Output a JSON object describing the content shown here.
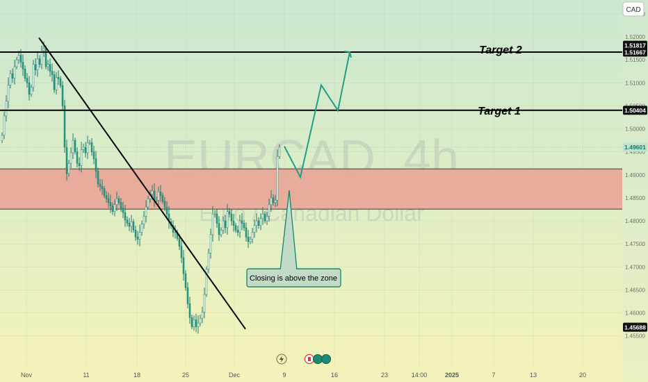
{
  "chart_data": {
    "type": "candlestick",
    "watermark": {
      "symbol": "EURCAD, 4h",
      "name": "Euro / Canadian Dollar"
    },
    "currency": "CAD",
    "y_axis": {
      "min": 1.448,
      "max": 1.528,
      "ticks": [
        "1.45500",
        "1.46000",
        "1.46500",
        "1.47000",
        "1.47500",
        "1.48000",
        "1.48500",
        "1.49000",
        "1.49500",
        "1.50000",
        "1.50500",
        "1.51000",
        "1.51500",
        "1.52000",
        "1.52500"
      ]
    },
    "x_axis": {
      "ticks": [
        {
          "label": "Nov",
          "bold": false
        },
        {
          "label": "11",
          "bold": false
        },
        {
          "label": "18",
          "bold": false
        },
        {
          "label": "25",
          "bold": false
        },
        {
          "label": "Dec",
          "bold": false
        },
        {
          "label": "9",
          "bold": false
        },
        {
          "label": "16",
          "bold": false
        },
        {
          "label": "23",
          "bold": false
        },
        {
          "label": "14:00",
          "bold": false
        },
        {
          "label": "2025",
          "bold": true
        },
        {
          "label": "7",
          "bold": false
        },
        {
          "label": "13",
          "bold": false
        },
        {
          "label": "20",
          "bold": false
        }
      ]
    },
    "price_labels": [
      {
        "value": 1.51817,
        "text": "1.51817",
        "style": "dark"
      },
      {
        "value": 1.51667,
        "text": "1.51667",
        "style": "dark"
      },
      {
        "value": 1.50404,
        "text": "1.50404",
        "style": "dark"
      },
      {
        "value": 1.49601,
        "text": "1.49601",
        "style": "green"
      },
      {
        "value": 1.45688,
        "text": "1.45688",
        "style": "dark"
      }
    ],
    "levels": [
      {
        "value": 1.51667,
        "label": "Target 2"
      },
      {
        "value": 1.50404,
        "label": "Target 1"
      }
    ],
    "zone": {
      "low": 1.48255,
      "high": 1.4913
    },
    "last_price": 1.49601,
    "annotation": "Closing is above the zone",
    "trendline": [
      {
        "x": "Nov 4",
        "y": 1.5198
      },
      {
        "x": "Dec 1",
        "y": 1.4565
      }
    ],
    "projection": [
      {
        "x": "Dec 9",
        "y": 1.4962
      },
      {
        "x": "Dec 12",
        "y": 1.4895
      },
      {
        "x": "Dec 16",
        "y": 1.5095
      },
      {
        "x": "Dec 18",
        "y": 1.504
      },
      {
        "x": "Dec 21",
        "y": 1.5167
      }
    ],
    "closes": [
      1.4986,
      1.5028,
      1.506,
      1.5095,
      1.512,
      1.511,
      1.5135,
      1.515,
      1.516,
      1.5145,
      1.513,
      1.511,
      1.51,
      1.5075,
      1.509,
      1.514,
      1.5128,
      1.5152,
      1.514,
      1.517,
      1.5175,
      1.5135,
      1.514,
      1.5125,
      1.5118,
      1.5085,
      1.5112,
      1.5109,
      1.5094,
      1.505,
      1.496,
      1.4903,
      1.4925,
      1.4948,
      1.4975,
      1.495,
      1.4925,
      1.492,
      1.4955,
      1.496,
      1.4948,
      1.497,
      1.497,
      1.495,
      1.4935,
      1.4908,
      1.488,
      1.4875,
      1.487,
      1.4855,
      1.4848,
      1.484,
      1.4832,
      1.482,
      1.4835,
      1.4848,
      1.484,
      1.4828,
      1.4818,
      1.4802,
      1.4795,
      1.4788,
      1.4798,
      1.478,
      1.4765,
      1.476,
      1.4775,
      1.4793,
      1.481,
      1.483,
      1.4848,
      1.4858,
      1.4865,
      1.4845,
      1.4845,
      1.4863,
      1.4855,
      1.4842,
      1.483,
      1.4815,
      1.4798,
      1.479,
      1.4775,
      1.4775,
      1.4762,
      1.4745,
      1.472,
      1.4685,
      1.4655,
      1.462,
      1.459,
      1.457,
      1.4585,
      1.457,
      1.4578,
      1.4588,
      1.4602,
      1.464,
      1.4695,
      1.473,
      1.477,
      1.4815,
      1.4815,
      1.4795,
      1.477,
      1.478,
      1.48,
      1.4785,
      1.482,
      1.4815,
      1.48,
      1.479,
      1.478,
      1.4775,
      1.48,
      1.4795,
      1.4785,
      1.4765,
      1.4755,
      1.476,
      1.4775,
      1.479,
      1.48,
      1.479,
      1.4805,
      1.4815,
      1.48,
      1.481,
      1.4835,
      1.485,
      1.484,
      1.4845,
      1.494,
      1.496
    ]
  },
  "header": {
    "currency_label": "CAD"
  },
  "annotation_label": "Closing is above the zone",
  "target2_label": "Target 2",
  "target1_label": "Target 1",
  "colors": {
    "bull": "#ffffff",
    "bear": "#1f9e86",
    "wick": "#1f7a6a",
    "zone_fill": "#e8a99a",
    "level_line": "#000000",
    "bg_top": "#cde8cf",
    "bg_bottom": "#f4f2b8"
  }
}
